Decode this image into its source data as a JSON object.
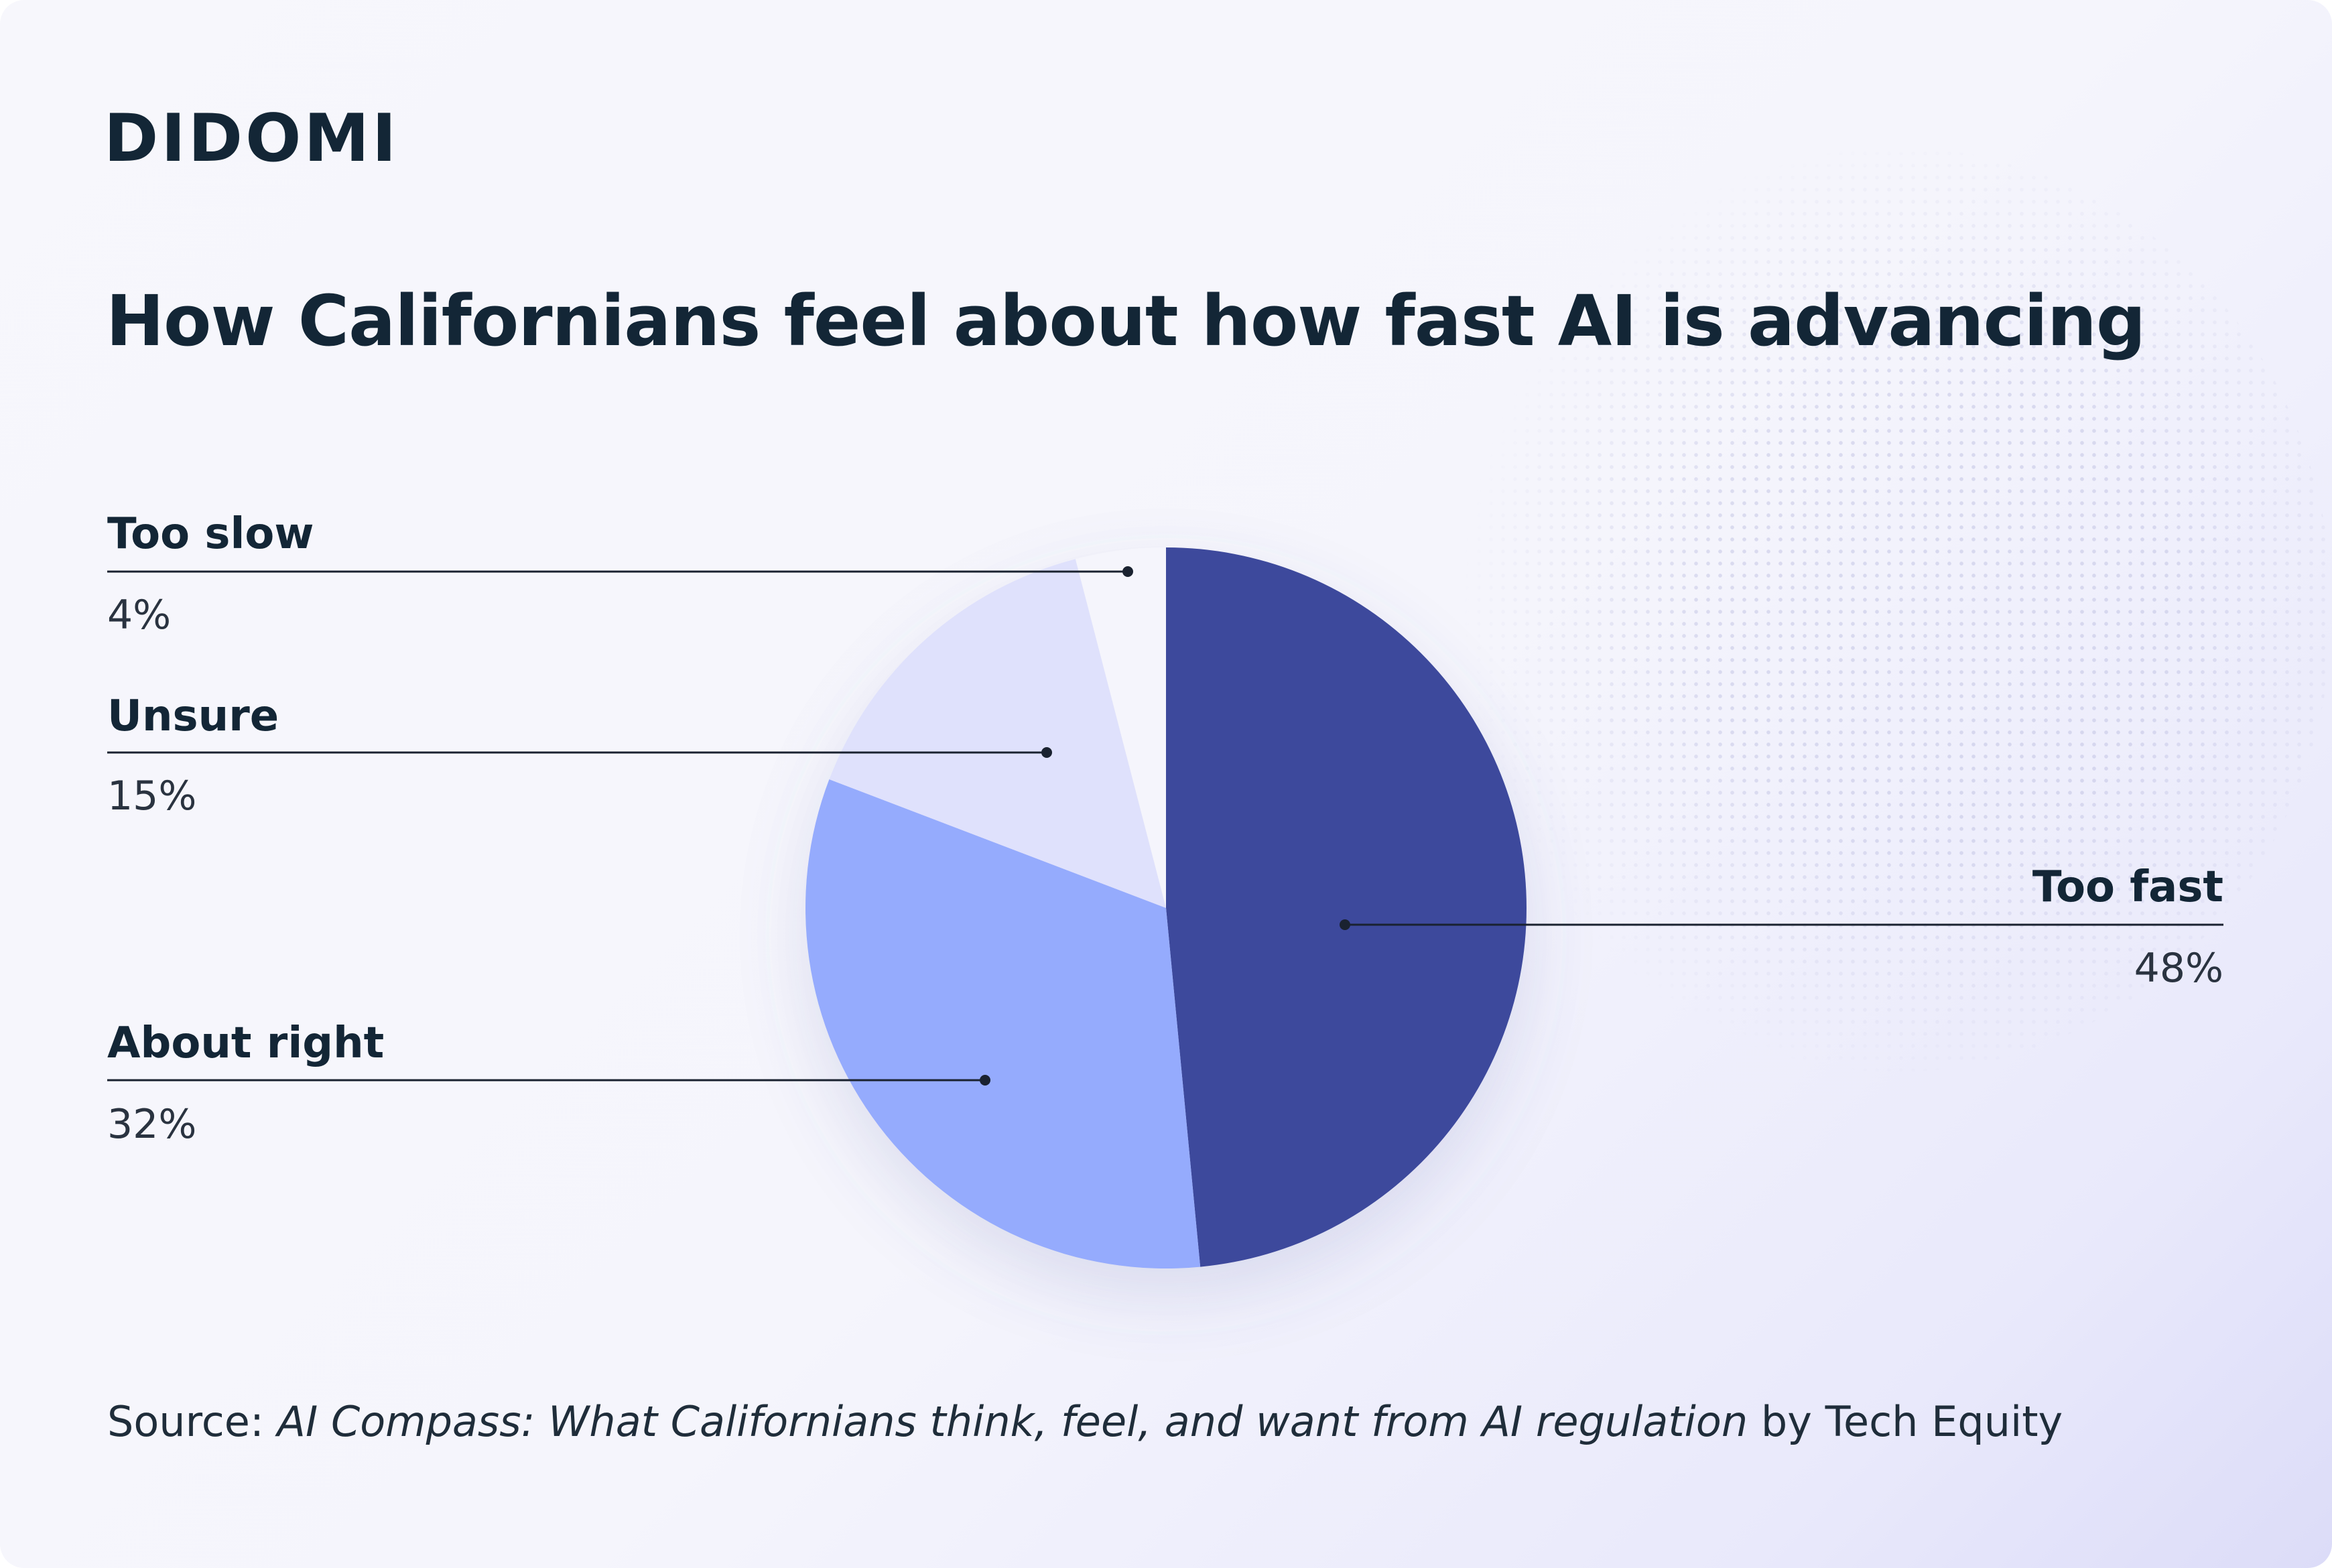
{
  "brand": {
    "logo_text": "DIDOMI"
  },
  "colors": {
    "text_dark": "#132636",
    "too_fast": "#3e4a9c",
    "about_right": "#95abfd",
    "unsure": "#dfe1fc",
    "too_slow": "#f5f5fc"
  },
  "chart_data": {
    "type": "pie",
    "title": "How Californians feel about how fast AI is advancing",
    "slices": [
      {
        "label": "Too fast",
        "value": 48,
        "value_label": "48%",
        "color": "#3e4a9c"
      },
      {
        "label": "About right",
        "value": 32,
        "value_label": "32%",
        "color": "#95abfd"
      },
      {
        "label": "Unsure",
        "value": 15,
        "value_label": "15%",
        "color": "#dfe1fc"
      },
      {
        "label": "Too slow",
        "value": 4,
        "value_label": "4%",
        "color": "#f5f5fc"
      }
    ],
    "legend": "callout-labels"
  },
  "source": {
    "prefix": "Source: ",
    "publication": "AI Compass: What Californians think, feel, and want from AI regulation",
    "suffix": " by Tech Equity"
  }
}
